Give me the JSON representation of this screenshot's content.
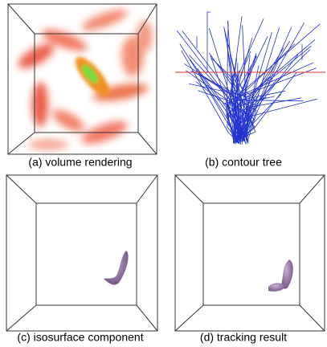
{
  "panels": [
    {
      "caption": "(a) volume rendering"
    },
    {
      "caption": "(b) contour tree"
    },
    {
      "caption": "(c) isosurface component"
    },
    {
      "caption": "(d) tracking result"
    }
  ]
}
